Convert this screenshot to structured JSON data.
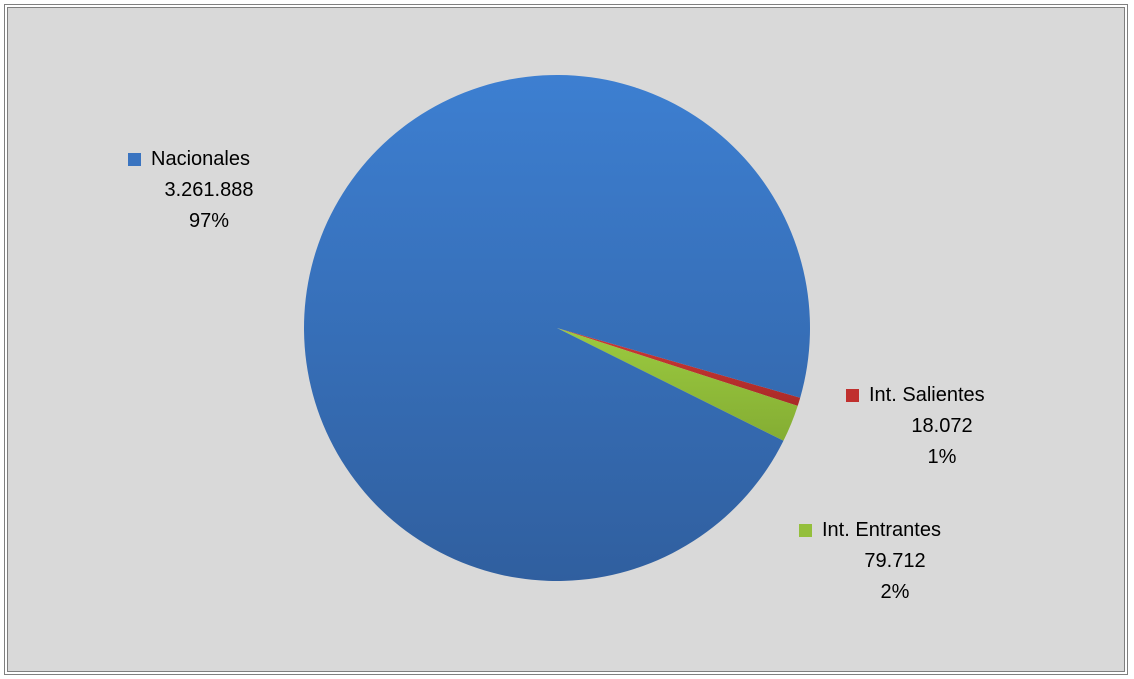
{
  "colors": {
    "background": "#d9d9d9",
    "border": "#7f7f7f",
    "nacionales": "#3a74c0",
    "salientes": "#c0302e",
    "entrantes": "#94bf3c"
  },
  "chart_data": {
    "type": "pie",
    "categories": [
      "Nacionales",
      "Int. Salientes",
      "Int. Entrantes"
    ],
    "values": [
      3261888,
      18072,
      79712
    ],
    "value_labels": [
      "3.261.888",
      "18.072",
      "79.712"
    ],
    "percent_labels": [
      "97%",
      "1%",
      "2%"
    ],
    "colors": [
      "#3a74c0",
      "#c0302e",
      "#94bf3c"
    ],
    "legend": "none",
    "data_labels": "name, value, percent"
  }
}
